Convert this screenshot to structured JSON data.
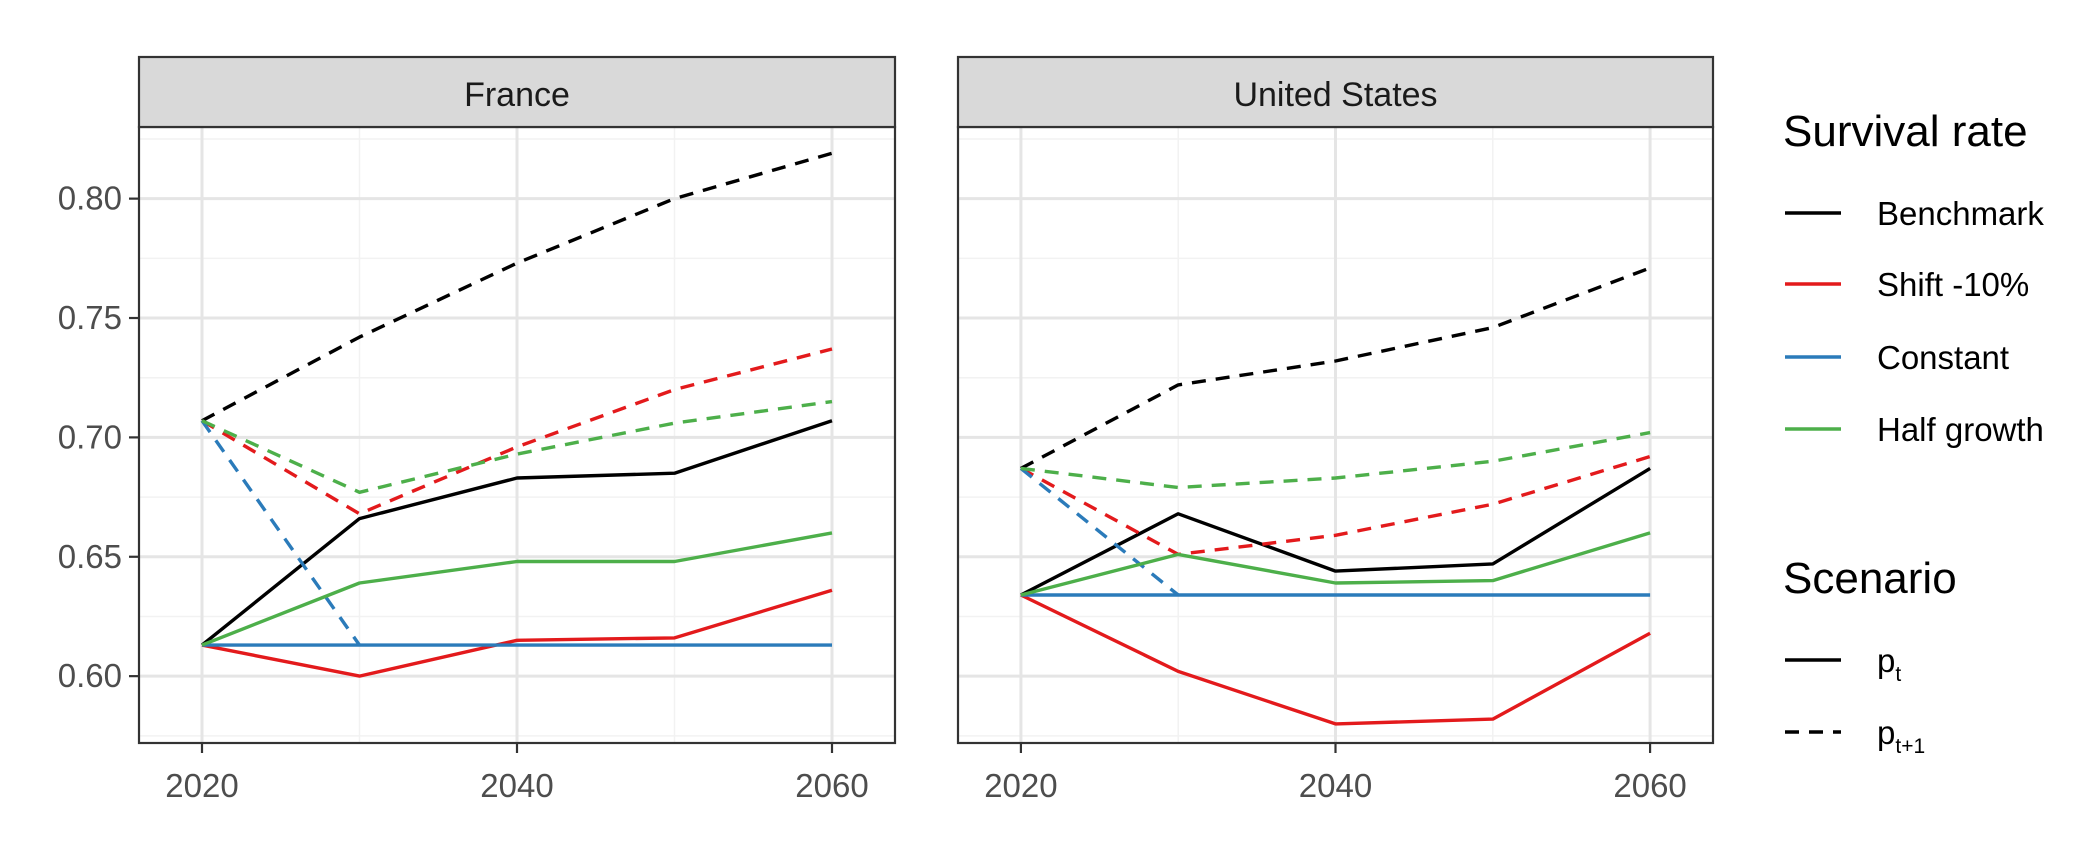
{
  "chart_data": {
    "type": "line",
    "x_ticks": [
      2020,
      2040,
      2060
    ],
    "y_ticks": [
      0.6,
      0.65,
      0.7,
      0.75,
      0.8
    ],
    "y_tick_labels": [
      "0.60",
      "0.65",
      "0.70",
      "0.75",
      "0.80"
    ],
    "x_tick_labels": [
      "2020",
      "2040",
      "2060"
    ],
    "xlim": [
      2016,
      2064
    ],
    "ylim": [
      0.572,
      0.83
    ],
    "grid": true,
    "legend_position": "right",
    "colors": {
      "Benchmark": "#000000",
      "Shift -10%": "#e31a1c",
      "Constant": "#2b7bba",
      "Half growth": "#4daf4a"
    },
    "legend": {
      "color_title": "Survival rate",
      "color_items": [
        "Benchmark",
        "Shift -10%",
        "Constant",
        "Half growth"
      ],
      "linetype_title": "Scenario",
      "linetype_items": [
        {
          "main": "p",
          "sub": "t",
          "dash": "solid"
        },
        {
          "main": "p",
          "sub": "t+1",
          "dash": "dashed"
        }
      ]
    },
    "panels": [
      {
        "title": "France",
        "series": [
          {
            "name": "Benchmark",
            "scenario": "pt",
            "x": [
              2020,
              2030,
              2040,
              2050,
              2060
            ],
            "values": [
              0.613,
              0.666,
              0.683,
              0.685,
              0.707
            ]
          },
          {
            "name": "Benchmark",
            "scenario": "pt+1",
            "x": [
              2020,
              2030,
              2040,
              2050,
              2060
            ],
            "values": [
              0.707,
              0.742,
              0.773,
              0.8,
              0.819
            ]
          },
          {
            "name": "Shift -10%",
            "scenario": "pt",
            "x": [
              2020,
              2030,
              2040,
              2050,
              2060
            ],
            "values": [
              0.613,
              0.6,
              0.615,
              0.616,
              0.636
            ]
          },
          {
            "name": "Shift -10%",
            "scenario": "pt+1",
            "x": [
              2020,
              2030,
              2040,
              2050,
              2060
            ],
            "values": [
              0.707,
              0.668,
              0.696,
              0.72,
              0.737
            ]
          },
          {
            "name": "Constant",
            "scenario": "pt",
            "x": [
              2020,
              2030,
              2040,
              2050,
              2060
            ],
            "values": [
              0.613,
              0.613,
              0.613,
              0.613,
              0.613
            ]
          },
          {
            "name": "Constant",
            "scenario": "pt+1",
            "x": [
              2020,
              2030
            ],
            "values": [
              0.707,
              0.613
            ]
          },
          {
            "name": "Half growth",
            "scenario": "pt",
            "x": [
              2020,
              2030,
              2040,
              2050,
              2060
            ],
            "values": [
              0.613,
              0.639,
              0.648,
              0.648,
              0.66
            ]
          },
          {
            "name": "Half growth",
            "scenario": "pt+1",
            "x": [
              2020,
              2030,
              2040,
              2050,
              2060
            ],
            "values": [
              0.707,
              0.677,
              0.693,
              0.706,
              0.715
            ]
          }
        ]
      },
      {
        "title": "United States",
        "series": [
          {
            "name": "Benchmark",
            "scenario": "pt",
            "x": [
              2020,
              2030,
              2040,
              2050,
              2060
            ],
            "values": [
              0.634,
              0.668,
              0.644,
              0.647,
              0.687
            ]
          },
          {
            "name": "Benchmark",
            "scenario": "pt+1",
            "x": [
              2020,
              2030,
              2040,
              2050,
              2060
            ],
            "values": [
              0.687,
              0.722,
              0.732,
              0.746,
              0.771
            ]
          },
          {
            "name": "Shift -10%",
            "scenario": "pt",
            "x": [
              2020,
              2030,
              2040,
              2050,
              2060
            ],
            "values": [
              0.634,
              0.602,
              0.58,
              0.582,
              0.618
            ]
          },
          {
            "name": "Shift -10%",
            "scenario": "pt+1",
            "x": [
              2020,
              2030,
              2040,
              2050,
              2060
            ],
            "values": [
              0.687,
              0.651,
              0.659,
              0.672,
              0.692
            ]
          },
          {
            "name": "Constant",
            "scenario": "pt",
            "x": [
              2020,
              2030,
              2040,
              2050,
              2060
            ],
            "values": [
              0.634,
              0.634,
              0.634,
              0.634,
              0.634
            ]
          },
          {
            "name": "Constant",
            "scenario": "pt+1",
            "x": [
              2020,
              2030
            ],
            "values": [
              0.687,
              0.634
            ]
          },
          {
            "name": "Half growth",
            "scenario": "pt",
            "x": [
              2020,
              2030,
              2040,
              2050,
              2060
            ],
            "values": [
              0.634,
              0.651,
              0.639,
              0.64,
              0.66
            ]
          },
          {
            "name": "Half growth",
            "scenario": "pt+1",
            "x": [
              2020,
              2030,
              2040,
              2050,
              2060
            ],
            "values": [
              0.687,
              0.679,
              0.683,
              0.69,
              0.702
            ]
          }
        ]
      }
    ]
  }
}
